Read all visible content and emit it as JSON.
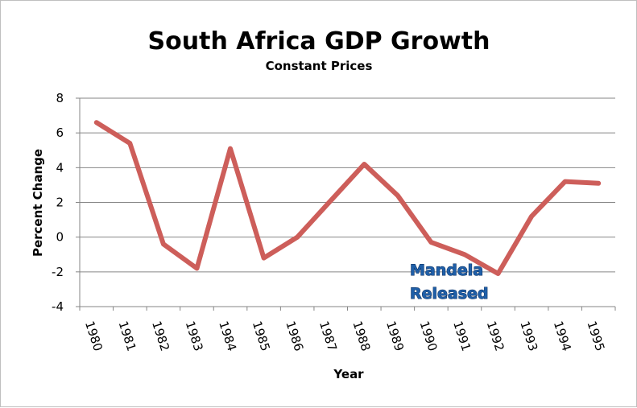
{
  "chart_data": {
    "type": "line",
    "title": "South Africa GDP Growth",
    "subtitle": "Constant Prices",
    "xlabel": "Year",
    "ylabel": "Percent Change",
    "categories": [
      "1980",
      "1981",
      "1982",
      "1983",
      "1984",
      "1985",
      "1986",
      "1987",
      "1988",
      "1989",
      "1990",
      "1991",
      "1992",
      "1993",
      "1994",
      "1995"
    ],
    "series": [
      {
        "color": "#cd5e5a",
        "values": [
          6.6,
          5.4,
          -0.4,
          -1.8,
          5.1,
          -1.2,
          0.0,
          2.1,
          4.2,
          2.4,
          -0.3,
          -1.0,
          -2.1,
          1.2,
          3.2,
          3.1
        ]
      }
    ],
    "ylim": [
      -4,
      8
    ],
    "yticks": [
      "8",
      "6",
      "4",
      "2",
      "0",
      "-2",
      "-4"
    ],
    "grid": true,
    "legend": "none",
    "annotation": {
      "lines": [
        "Mandela",
        "Released"
      ],
      "year": "1990"
    }
  }
}
